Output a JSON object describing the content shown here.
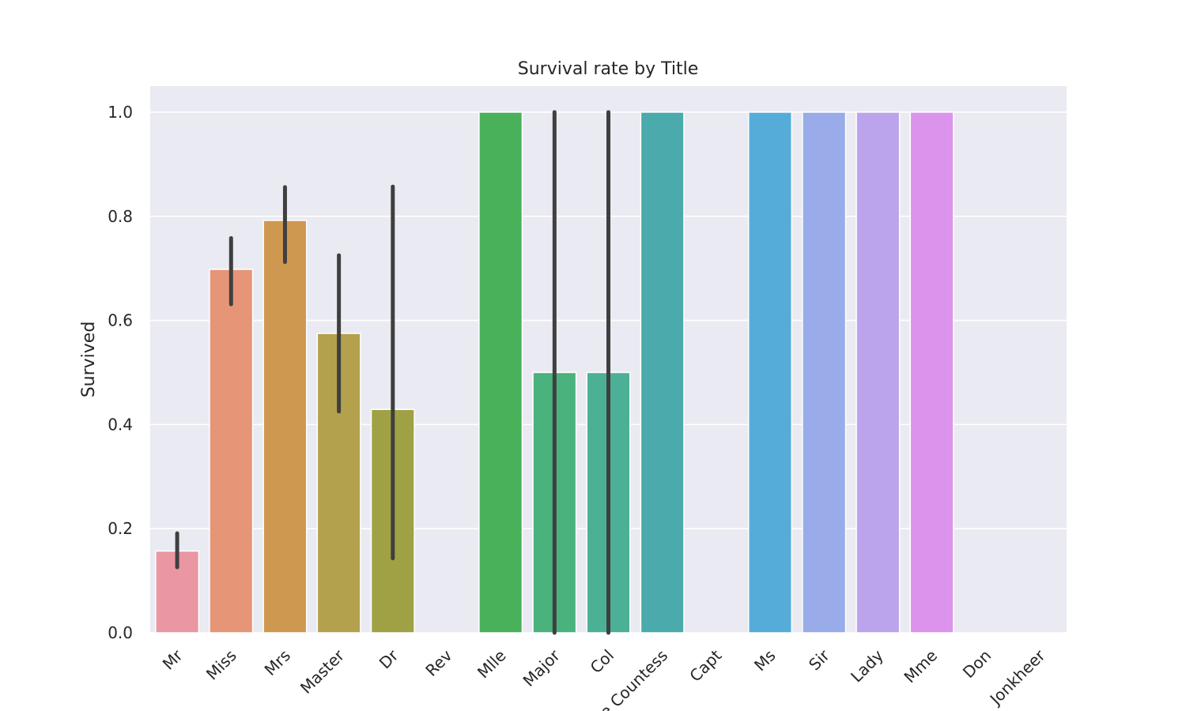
{
  "chart_data": {
    "type": "bar",
    "title": "Survival rate by Title",
    "xlabel": "",
    "ylabel": "Survived",
    "ylim": [
      0,
      1.05
    ],
    "yticks": [
      "0.0",
      "0.2",
      "0.4",
      "0.6",
      "0.8",
      "1.0"
    ],
    "grid": true,
    "categories": [
      "Mr",
      "Miss",
      "Mrs",
      "Master",
      "Dr",
      "Rev",
      "Mlle",
      "Major",
      "Col",
      "the Countess",
      "Capt",
      "Ms",
      "Sir",
      "Lady",
      "Mme",
      "Don",
      "Jonkheer"
    ],
    "values": [
      0.157,
      0.698,
      0.792,
      0.575,
      0.429,
      0.0,
      1.0,
      0.5,
      0.5,
      1.0,
      0.0,
      1.0,
      1.0,
      1.0,
      1.0,
      0.0,
      0.0
    ],
    "ci_low": [
      0.126,
      0.631,
      0.712,
      0.425,
      0.143,
      null,
      null,
      0.0,
      0.0,
      null,
      null,
      null,
      null,
      null,
      null,
      null,
      null
    ],
    "ci_high": [
      0.191,
      0.758,
      0.856,
      0.725,
      0.857,
      null,
      null,
      1.0,
      1.0,
      null,
      null,
      null,
      null,
      null,
      null,
      null,
      null
    ],
    "colors": [
      "#ea96a3",
      "#e69577",
      "#cf9850",
      "#b3a14d",
      "#a0a145",
      "#7aa73f",
      "#48b159",
      "#4ab27d",
      "#4cb096",
      "#4babac",
      "#4eaac0",
      "#56acd9",
      "#99abe8",
      "#bba4ec",
      "#dc93ec",
      "#e68fd5",
      "#ea93bb"
    ],
    "axes_background": "#eaeaf2",
    "grid_color": "#ffffff",
    "errorbar_color": "#3f3f3f"
  }
}
